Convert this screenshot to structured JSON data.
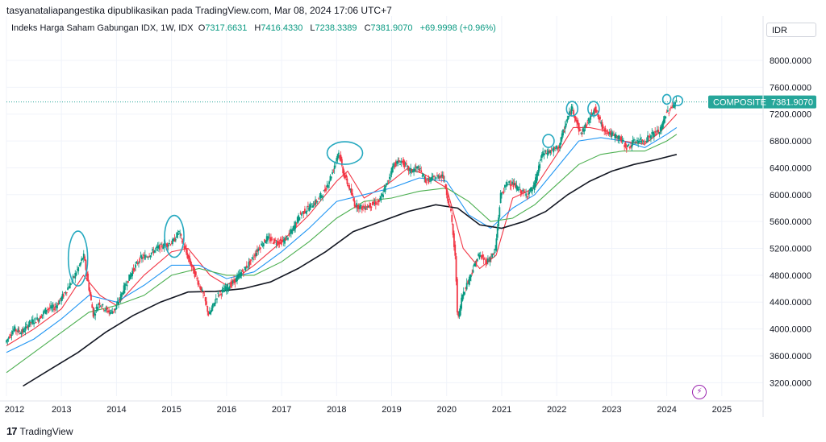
{
  "header": {
    "attribution": "tasyanataliapangestika dipublikasikan pada TradingView.com, Mar 08, 2024 17:06 UTC+7",
    "symbol": "Indeks Harga Saham Gabungan IDX, 1W, IDX",
    "open_label": "O",
    "open": "7317.6631",
    "high_label": "H",
    "high": "7416.4330",
    "low_label": "L",
    "low": "7238.3389",
    "close_label": "C",
    "close": "7381.9070",
    "change": "+69.9998 (+0.96%)"
  },
  "axis": {
    "currency": "IDR"
  },
  "price_tag": {
    "name": "COMPOSITE",
    "value": "7381.9070"
  },
  "footer": {
    "brand": "TradingView"
  },
  "colors": {
    "up": "#089981",
    "down": "#f23645",
    "ma_red": "#f23645",
    "ma_blue": "#2196f3",
    "ma_green": "#4caf50",
    "ma_black": "#131722",
    "annotation": "#26a9c0",
    "tag": "#26a69a"
  },
  "chart_data": {
    "type": "line",
    "title": "Indeks Harga Saham Gabungan IDX, 1W, IDX",
    "ylim": [
      3000,
      8300
    ],
    "y_ticks": [
      "8000.0000",
      "7600.0000",
      "7200.0000",
      "6800.0000",
      "6400.0000",
      "6000.0000",
      "5600.0000",
      "5200.0000",
      "4800.0000",
      "4400.0000",
      "4000.0000",
      "3600.0000",
      "3200.0000"
    ],
    "x_ticks": [
      "2012",
      "2013",
      "2014",
      "2015",
      "2016",
      "2017",
      "2018",
      "2019",
      "2020",
      "2021",
      "2022",
      "2023",
      "2024",
      "2025"
    ],
    "x_tick_years": [
      2012.0,
      2013.0,
      2014.0,
      2015.0,
      2016.0,
      2017.0,
      2018.0,
      2019.0,
      2020.0,
      2021.0,
      2022.0,
      2023.0,
      2024.0,
      2025.0
    ],
    "last_price": 7381.907,
    "price": {
      "x": [
        2012.0,
        2012.15,
        2012.3,
        2012.45,
        2012.6,
        2012.75,
        2012.9,
        2013.05,
        2013.2,
        2013.35,
        2013.42,
        2013.5,
        2013.6,
        2013.7,
        2013.8,
        2013.9,
        2014.0,
        2014.15,
        2014.3,
        2014.45,
        2014.6,
        2014.75,
        2014.9,
        2015.05,
        2015.15,
        2015.3,
        2015.45,
        2015.6,
        2015.7,
        2015.85,
        2016.0,
        2016.15,
        2016.3,
        2016.45,
        2016.6,
        2016.75,
        2016.9,
        2017.05,
        2017.2,
        2017.35,
        2017.5,
        2017.65,
        2017.8,
        2017.95,
        2018.05,
        2018.15,
        2018.25,
        2018.35,
        2018.5,
        2018.65,
        2018.8,
        2018.95,
        2019.05,
        2019.2,
        2019.35,
        2019.5,
        2019.65,
        2019.8,
        2019.95,
        2020.1,
        2020.18,
        2020.22,
        2020.3,
        2020.45,
        2020.6,
        2020.75,
        2020.9,
        2021.0,
        2021.15,
        2021.3,
        2021.45,
        2021.6,
        2021.75,
        2021.9,
        2022.05,
        2022.2,
        2022.3,
        2022.45,
        2022.6,
        2022.7,
        2022.85,
        2023.0,
        2023.15,
        2023.3,
        2023.45,
        2023.6,
        2023.75,
        2023.9,
        2024.0,
        2024.1,
        2024.18
      ],
      "y": [
        3800,
        4000,
        3950,
        4100,
        4150,
        4300,
        4320,
        4500,
        4700,
        4950,
        5100,
        4700,
        4200,
        4400,
        4300,
        4250,
        4300,
        4600,
        4850,
        5050,
        5100,
        5200,
        5250,
        5300,
        5450,
        5100,
        4800,
        4500,
        4200,
        4500,
        4600,
        4700,
        4850,
        5000,
        5200,
        5350,
        5300,
        5300,
        5450,
        5700,
        5800,
        5900,
        6050,
        6350,
        6650,
        6300,
        6100,
        5850,
        5800,
        5850,
        5900,
        6200,
        6450,
        6500,
        6350,
        6400,
        6200,
        6250,
        6300,
        5700,
        5000,
        4100,
        4500,
        4800,
        5100,
        5000,
        5150,
        6000,
        6200,
        6100,
        6000,
        6100,
        6600,
        6650,
        6700,
        7100,
        7300,
        6900,
        7100,
        7300,
        7000,
        6900,
        6850,
        6700,
        6800,
        6800,
        6900,
        6950,
        7200,
        7300,
        7382
      ]
    },
    "series": [
      {
        "name": "",
        "color_key": "ma_red",
        "x": [
          2012.0,
          2012.5,
          2013.0,
          2013.4,
          2013.7,
          2014.0,
          2014.5,
          2015.0,
          2015.3,
          2015.7,
          2016.0,
          2016.5,
          2017.0,
          2017.5,
          2018.0,
          2018.2,
          2018.5,
          2019.0,
          2019.3,
          2019.6,
          2020.0,
          2020.3,
          2020.6,
          2020.9,
          2021.2,
          2021.6,
          2022.0,
          2022.3,
          2022.6,
          2022.9,
          2023.2,
          2023.6,
          2023.9,
          2024.18
        ],
        "y": [
          3750,
          4000,
          4300,
          4800,
          4500,
          4350,
          4800,
          5150,
          5200,
          4800,
          4650,
          4950,
          5300,
          5700,
          6200,
          6350,
          5950,
          6200,
          6400,
          6300,
          6100,
          5200,
          4900,
          5100,
          5950,
          6100,
          6600,
          7000,
          7000,
          6950,
          6800,
          6750,
          6950,
          7200
        ]
      },
      {
        "name": "",
        "color_key": "ma_blue",
        "x": [
          2012.0,
          2012.5,
          2013.0,
          2013.5,
          2014.0,
          2014.5,
          2015.0,
          2015.5,
          2016.0,
          2016.5,
          2017.0,
          2017.5,
          2018.0,
          2018.5,
          2019.0,
          2019.5,
          2020.0,
          2020.4,
          2020.8,
          2021.2,
          2021.6,
          2022.0,
          2022.4,
          2022.8,
          2023.2,
          2023.6,
          2024.0,
          2024.18
        ],
        "y": [
          3650,
          3850,
          4150,
          4500,
          4400,
          4650,
          4950,
          4950,
          4750,
          4850,
          5150,
          5500,
          5900,
          6000,
          6100,
          6250,
          6200,
          5700,
          5500,
          5800,
          6000,
          6400,
          6800,
          6850,
          6800,
          6700,
          6900,
          7000
        ]
      },
      {
        "name": "",
        "color_key": "ma_green",
        "x": [
          2012.0,
          2012.5,
          2013.0,
          2013.5,
          2014.0,
          2014.5,
          2015.0,
          2015.5,
          2016.0,
          2016.5,
          2017.0,
          2017.5,
          2018.0,
          2018.5,
          2019.0,
          2019.5,
          2020.0,
          2020.4,
          2020.8,
          2021.2,
          2021.6,
          2022.0,
          2022.4,
          2022.8,
          2023.2,
          2023.6,
          2024.0,
          2024.18
        ],
        "y": [
          3350,
          3650,
          3950,
          4250,
          4350,
          4500,
          4800,
          4900,
          4800,
          4800,
          5000,
          5300,
          5650,
          5900,
          5950,
          6050,
          6100,
          5900,
          5600,
          5650,
          5850,
          6150,
          6450,
          6600,
          6650,
          6650,
          6800,
          6900
        ]
      },
      {
        "name": "",
        "color_key": "ma_black",
        "x": [
          2012.3,
          2012.8,
          2013.3,
          2013.8,
          2014.3,
          2014.8,
          2015.3,
          2015.8,
          2016.3,
          2016.8,
          2017.3,
          2017.8,
          2018.3,
          2018.8,
          2019.3,
          2019.8,
          2020.2,
          2020.6,
          2021.0,
          2021.4,
          2021.8,
          2022.2,
          2022.6,
          2023.0,
          2023.4,
          2023.8,
          2024.18
        ],
        "y": [
          3150,
          3400,
          3650,
          3950,
          4200,
          4400,
          4550,
          4560,
          4600,
          4700,
          4900,
          5150,
          5450,
          5600,
          5750,
          5850,
          5800,
          5550,
          5500,
          5600,
          5750,
          6000,
          6200,
          6350,
          6450,
          6520,
          6600
        ]
      }
    ]
  }
}
